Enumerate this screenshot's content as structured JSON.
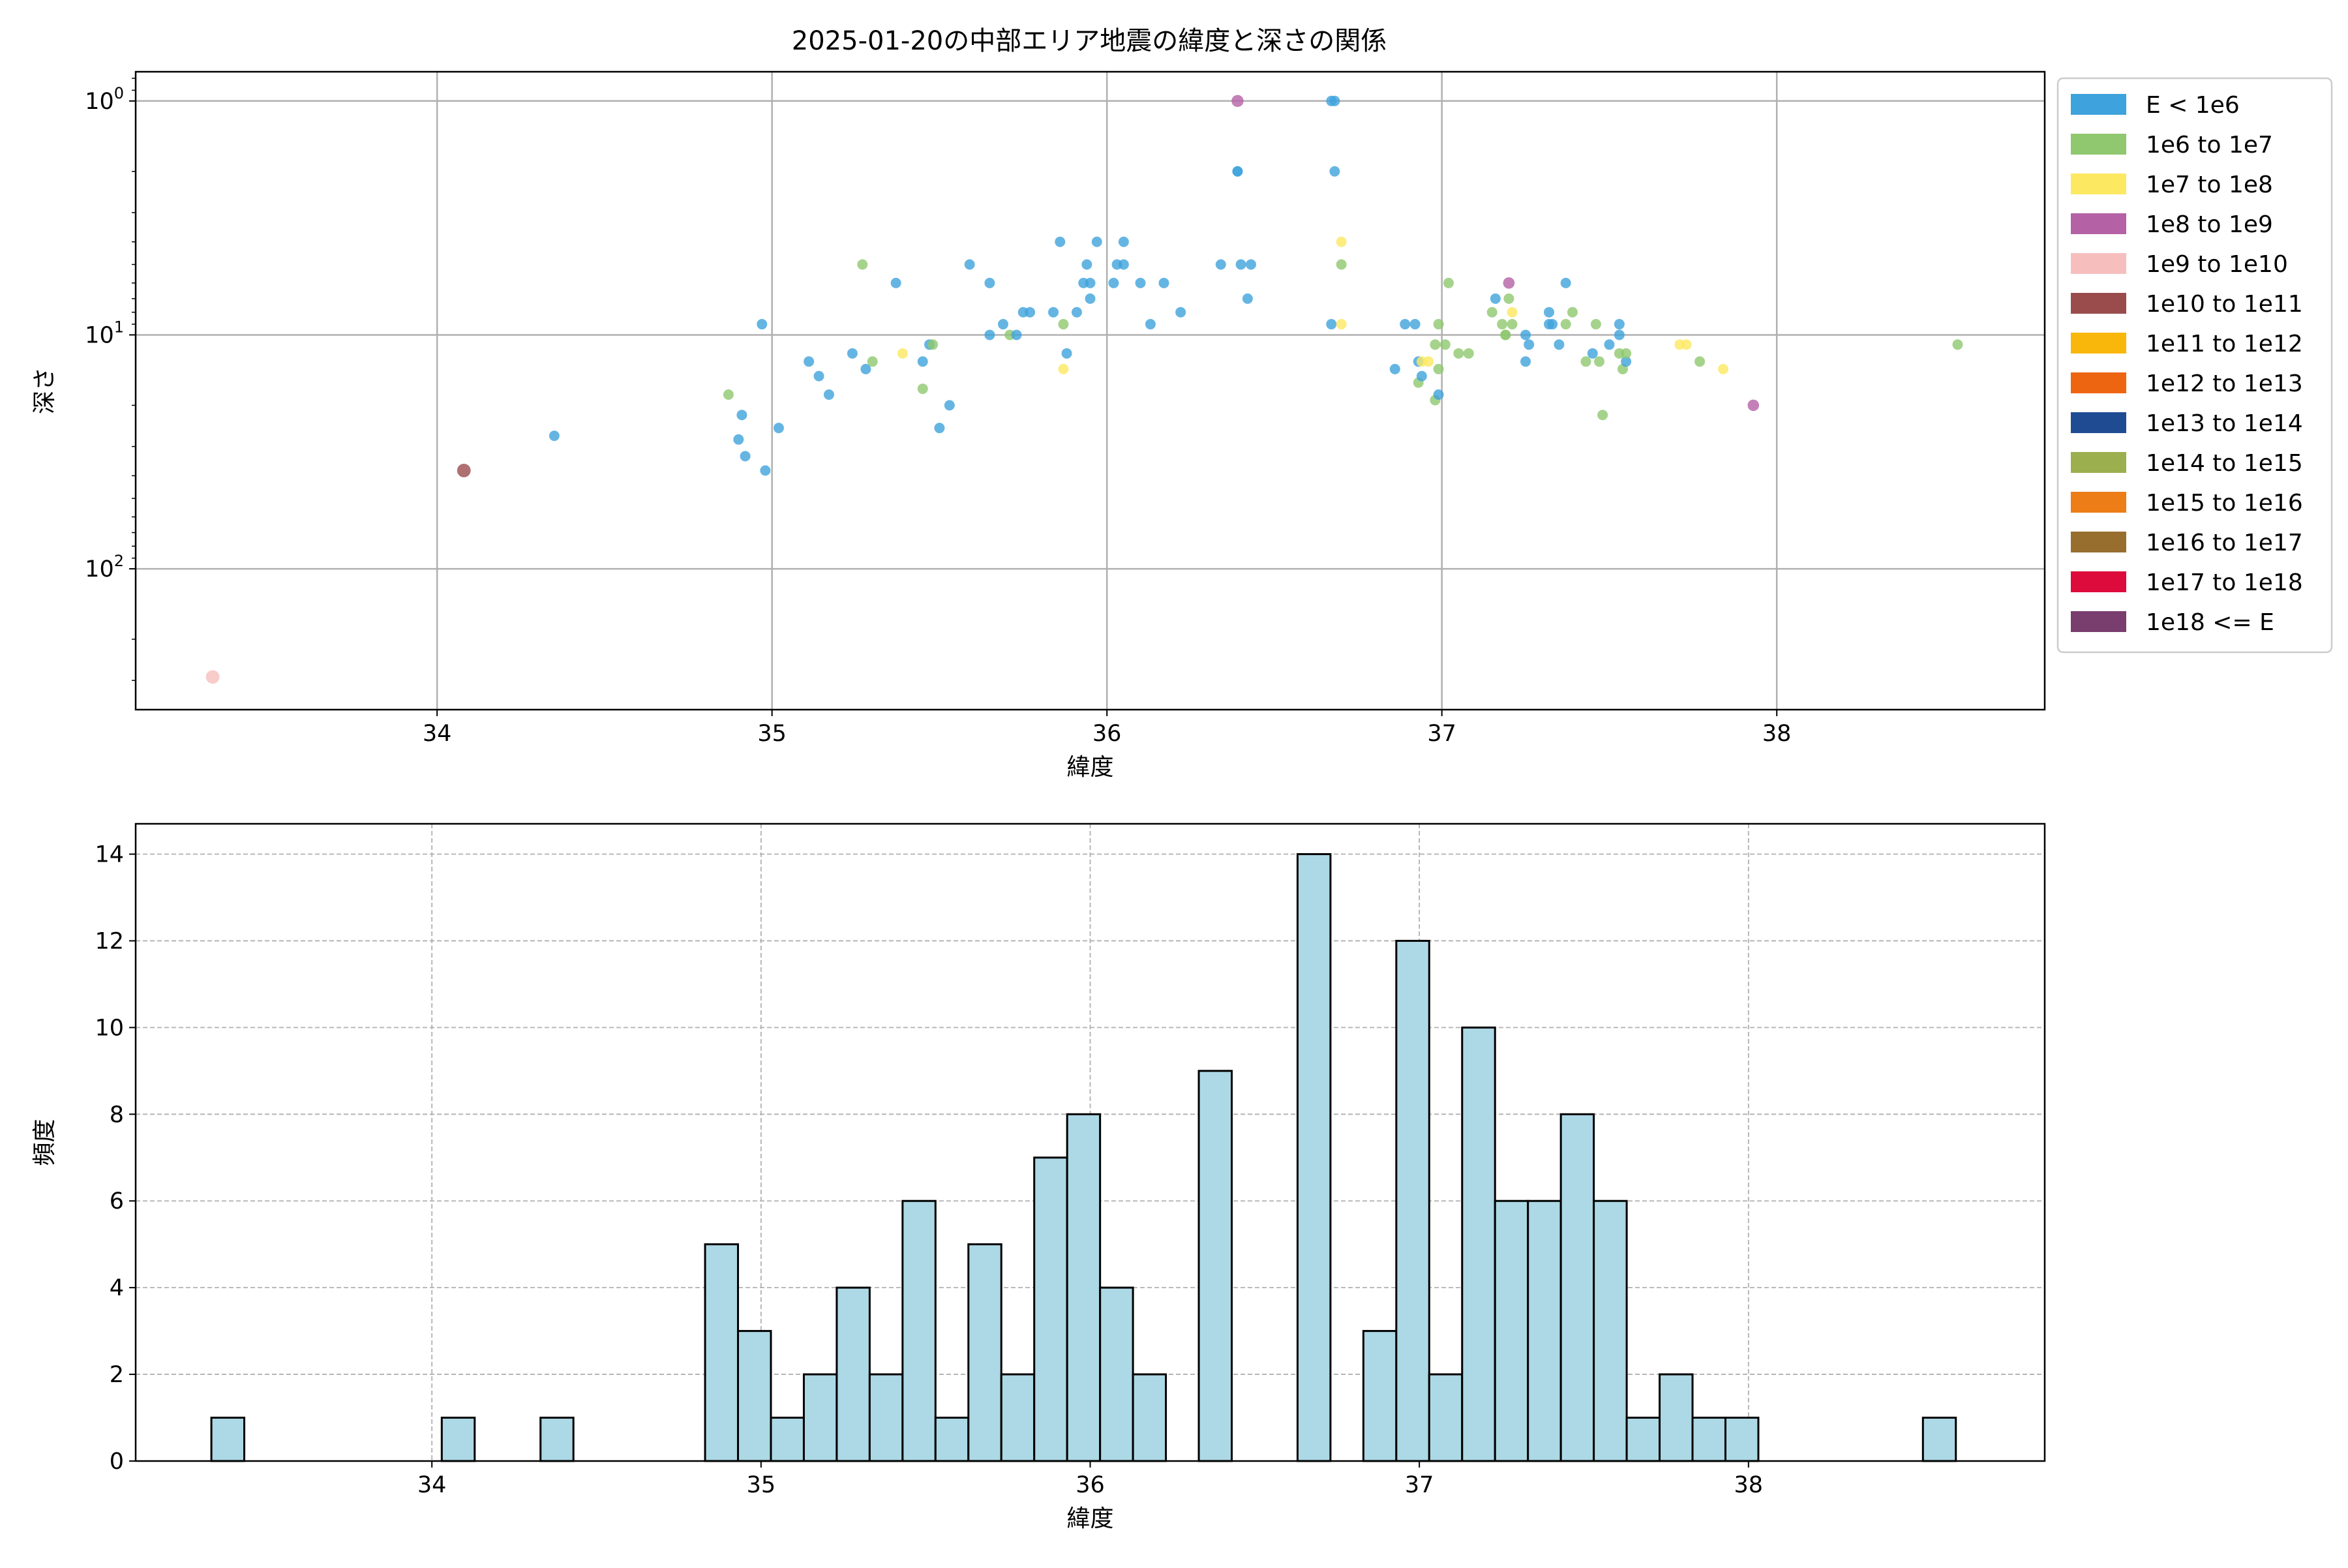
{
  "title": "2025-01-20の中部エリア地震の緯度と深さの関係",
  "chart_data": [
    {
      "type": "scatter",
      "xlabel": "緯度",
      "ylabel": "深さ",
      "xlim": [
        33.1,
        38.8
      ],
      "ylim": [
        400,
        0.75
      ],
      "y_scale": "log",
      "y_inverted": true,
      "grid": true,
      "x_ticks": [
        "34",
        "35",
        "36",
        "37",
        "38"
      ],
      "y_ticks": [
        "10^0",
        "10^1",
        "10^2"
      ],
      "legend_position": "outside-right",
      "legend": [
        {
          "label": "E < 1e6",
          "color": "#3ea2dc"
        },
        {
          "label": "1e6 to 1e7",
          "color": "#8fc86e"
        },
        {
          "label": "1e7 to 1e8",
          "color": "#fde961"
        },
        {
          "label": "1e8 to 1e9",
          "color": "#b462a5"
        },
        {
          "label": "1e9 to 1e10",
          "color": "#f6bfbd"
        },
        {
          "label": "1e10 to 1e11",
          "color": "#9a4c4d"
        },
        {
          "label": "1e11 to 1e12",
          "color": "#f9b70b"
        },
        {
          "label": "1e12 to 1e13",
          "color": "#ee6511"
        },
        {
          "label": "1e13 to 1e14",
          "color": "#1f4b93"
        },
        {
          "label": "1e14 to 1e15",
          "color": "#9baf4e"
        },
        {
          "label": "1e15 to 1e16",
          "color": "#ec7d17"
        },
        {
          "label": "1e16 to 1e17",
          "color": "#976e2e"
        },
        {
          "label": "1e17 to 1e18",
          "color": "#dd0b3c"
        },
        {
          "label": "1e18 <= E",
          "color": "#7a3e6e"
        }
      ],
      "points": [
        [
          33.33,
          290,
          4,
          1.3
        ],
        [
          34.08,
          38,
          5,
          1.3
        ],
        [
          34.35,
          27,
          0,
          1
        ],
        [
          34.87,
          18,
          1,
          1
        ],
        [
          34.9,
          28,
          0,
          1
        ],
        [
          34.91,
          22,
          0,
          1
        ],
        [
          34.92,
          33,
          0,
          1
        ],
        [
          34.97,
          9,
          0,
          1
        ],
        [
          34.98,
          38,
          0,
          1
        ],
        [
          35.02,
          25,
          0,
          1
        ],
        [
          35.11,
          13,
          0,
          1
        ],
        [
          35.14,
          15,
          0,
          1
        ],
        [
          35.17,
          18,
          0,
          1
        ],
        [
          35.24,
          12,
          0,
          1
        ],
        [
          35.27,
          5,
          1,
          1
        ],
        [
          35.28,
          14,
          0,
          1
        ],
        [
          35.3,
          13,
          1,
          1
        ],
        [
          35.37,
          6,
          0,
          1
        ],
        [
          35.39,
          12,
          2,
          1
        ],
        [
          35.45,
          17,
          1,
          1
        ],
        [
          35.45,
          13,
          0,
          1
        ],
        [
          35.47,
          11,
          0,
          1
        ],
        [
          35.48,
          11,
          1,
          1
        ],
        [
          35.5,
          25,
          0,
          1
        ],
        [
          35.53,
          20,
          0,
          1
        ],
        [
          35.59,
          5,
          0,
          1
        ],
        [
          35.65,
          6,
          0,
          1
        ],
        [
          35.65,
          10,
          0,
          1
        ],
        [
          35.69,
          9,
          0,
          1
        ],
        [
          35.71,
          10,
          1,
          1
        ],
        [
          35.73,
          10,
          0,
          1
        ],
        [
          35.75,
          8,
          0,
          1
        ],
        [
          35.77,
          8,
          0,
          1
        ],
        [
          35.84,
          8,
          0,
          1
        ],
        [
          35.86,
          4,
          0,
          1
        ],
        [
          35.87,
          14,
          2,
          1
        ],
        [
          35.88,
          12,
          0,
          1
        ],
        [
          35.87,
          9,
          1,
          1
        ],
        [
          35.91,
          8,
          0,
          1
        ],
        [
          35.93,
          6,
          0,
          1
        ],
        [
          35.94,
          5,
          0,
          1
        ],
        [
          35.95,
          6,
          0,
          1
        ],
        [
          35.95,
          7,
          0,
          1
        ],
        [
          35.97,
          4,
          0,
          1
        ],
        [
          36.02,
          6,
          0,
          1
        ],
        [
          36.03,
          5,
          0,
          1
        ],
        [
          36.05,
          5,
          0,
          1
        ],
        [
          36.05,
          4,
          0,
          1
        ],
        [
          36.1,
          6,
          0,
          1
        ],
        [
          36.13,
          9,
          0,
          1
        ],
        [
          36.17,
          6,
          0,
          1
        ],
        [
          36.22,
          8,
          0,
          1
        ],
        [
          36.34,
          5,
          0,
          1
        ],
        [
          36.39,
          1,
          3,
          1.15
        ],
        [
          36.39,
          2,
          0,
          1
        ],
        [
          36.39,
          2,
          0,
          1
        ],
        [
          36.4,
          5,
          0,
          1
        ],
        [
          36.43,
          5,
          0,
          1
        ],
        [
          36.42,
          7,
          0,
          1
        ],
        [
          36.67,
          1,
          0,
          1
        ],
        [
          36.68,
          1,
          0,
          1
        ],
        [
          36.67,
          9,
          0,
          1
        ],
        [
          36.68,
          2,
          0,
          1
        ],
        [
          36.7,
          4,
          2,
          1
        ],
        [
          36.7,
          5,
          1,
          1
        ],
        [
          36.7,
          9,
          2,
          1
        ],
        [
          36.86,
          14,
          0,
          1
        ],
        [
          36.89,
          9,
          0,
          1
        ],
        [
          36.92,
          9,
          0,
          1
        ],
        [
          36.93,
          13,
          0,
          1
        ],
        [
          36.93,
          16,
          1,
          1
        ],
        [
          36.94,
          15,
          0,
          1
        ],
        [
          36.94,
          13,
          2,
          1
        ],
        [
          36.96,
          13,
          2,
          1
        ],
        [
          36.98,
          19,
          1,
          1
        ],
        [
          36.98,
          11,
          1,
          1
        ],
        [
          36.99,
          14,
          1,
          1
        ],
        [
          36.99,
          9,
          1,
          1
        ],
        [
          36.99,
          18,
          0,
          1
        ],
        [
          37.01,
          11,
          1,
          1
        ],
        [
          37.02,
          6,
          1,
          1
        ],
        [
          37.05,
          12,
          1,
          1
        ],
        [
          37.08,
          12,
          1,
          1
        ],
        [
          37.15,
          8,
          1,
          1
        ],
        [
          37.16,
          7,
          0,
          1
        ],
        [
          37.18,
          9,
          1,
          1
        ],
        [
          37.19,
          10,
          1,
          1
        ],
        [
          37.19,
          10,
          1,
          1
        ],
        [
          37.2,
          6,
          3,
          1.1
        ],
        [
          37.2,
          7,
          1,
          1
        ],
        [
          37.21,
          9,
          1,
          1
        ],
        [
          37.21,
          8,
          2,
          1
        ],
        [
          37.25,
          10,
          0,
          1
        ],
        [
          37.26,
          11,
          0,
          1
        ],
        [
          37.25,
          13,
          0,
          1
        ],
        [
          37.32,
          9,
          0,
          1
        ],
        [
          37.32,
          8,
          0,
          1
        ],
        [
          37.33,
          9,
          0,
          1
        ],
        [
          37.35,
          11,
          0,
          1
        ],
        [
          37.37,
          6,
          0,
          1
        ],
        [
          37.37,
          9,
          1,
          1
        ],
        [
          37.39,
          8,
          1,
          1
        ],
        [
          37.43,
          13,
          1,
          1
        ],
        [
          37.45,
          12,
          0,
          1
        ],
        [
          37.46,
          9,
          1,
          1
        ],
        [
          37.47,
          13,
          1,
          1
        ],
        [
          37.48,
          22,
          1,
          1
        ],
        [
          37.5,
          11,
          0,
          1
        ],
        [
          37.53,
          9,
          0,
          1
        ],
        [
          37.53,
          10,
          0,
          1
        ],
        [
          37.53,
          12,
          1,
          1
        ],
        [
          37.54,
          14,
          1,
          1
        ],
        [
          37.55,
          13,
          0,
          1
        ],
        [
          37.55,
          12,
          1,
          1
        ],
        [
          37.71,
          11,
          2,
          1
        ],
        [
          37.73,
          11,
          2,
          1
        ],
        [
          37.77,
          13,
          1,
          1
        ],
        [
          37.84,
          14,
          2,
          1
        ],
        [
          37.93,
          20,
          3,
          1.1
        ],
        [
          38.54,
          11,
          1,
          1
        ]
      ]
    },
    {
      "type": "bar",
      "title": "",
      "xlabel": "緯度",
      "ylabel": "頻度",
      "xlim": [
        33.1,
        38.9
      ],
      "ylim": [
        0,
        14.7
      ],
      "grid": true,
      "grid_style": "dashed",
      "bin_width": 0.1,
      "x_ticks": [
        "34",
        "35",
        "36",
        "37",
        "38"
      ],
      "y_ticks": [
        "0",
        "2",
        "4",
        "6",
        "8",
        "10",
        "12",
        "14"
      ],
      "bar_color": "#add8e6",
      "edge_color": "#000000",
      "bins": [
        [
          33.33,
          1
        ],
        [
          34.03,
          1
        ],
        [
          34.33,
          1
        ],
        [
          34.83,
          5
        ],
        [
          34.93,
          3
        ],
        [
          35.03,
          1
        ],
        [
          35.13,
          2
        ],
        [
          35.23,
          4
        ],
        [
          35.33,
          2
        ],
        [
          35.43,
          6
        ],
        [
          35.53,
          1
        ],
        [
          35.63,
          5
        ],
        [
          35.73,
          2
        ],
        [
          35.83,
          7
        ],
        [
          35.93,
          8
        ],
        [
          36.03,
          4
        ],
        [
          36.13,
          2
        ],
        [
          36.33,
          9
        ],
        [
          36.63,
          14
        ],
        [
          36.83,
          3
        ],
        [
          36.93,
          12
        ],
        [
          37.03,
          2
        ],
        [
          37.13,
          10
        ],
        [
          37.23,
          6
        ],
        [
          37.33,
          6
        ],
        [
          37.43,
          8
        ],
        [
          37.53,
          6
        ],
        [
          37.63,
          1
        ],
        [
          37.73,
          2
        ],
        [
          37.83,
          1
        ],
        [
          37.93,
          1
        ],
        [
          38.53,
          1
        ]
      ]
    }
  ]
}
